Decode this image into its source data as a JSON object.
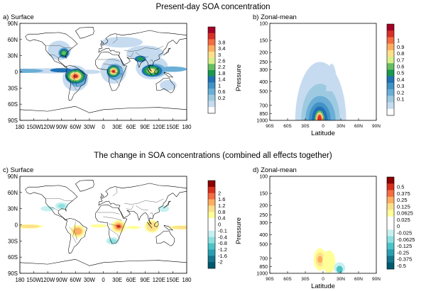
{
  "figure": {
    "title_top": "Present-day SOA concentration",
    "title_bottom": "The change in SOA concentrations (combined all effects together)"
  },
  "chart_data": [
    {
      "type": "heatmap",
      "panel": "a)",
      "title": "Surface",
      "map": "world",
      "x_ticks": [
        "180",
        "150W",
        "120W",
        "90W",
        "60W",
        "30W",
        "0",
        "30E",
        "60E",
        "90E",
        "120E",
        "150E",
        "180"
      ],
      "y_ticks": [
        "90N",
        "60N",
        "30N",
        "0",
        "30S",
        "60S",
        "90S"
      ],
      "xlim": [
        -180,
        180
      ],
      "ylim": [
        -90,
        90
      ],
      "colorbar_ticks": [
        "3.8",
        "3.4",
        "3",
        "2.6",
        "2.2",
        "1.8",
        "1.4",
        "1",
        "0.6",
        "0.2"
      ],
      "colorbar_colors": [
        "#a50026",
        "#d73027",
        "#f46d43",
        "#fdae61",
        "#fee08b",
        "#d9ef8b",
        "#66bd63",
        "#1a9850",
        "#2171b5",
        "#4292c6",
        "#6baed6",
        "#9ecae1",
        "#c6dbef",
        "#ffffff"
      ],
      "features": [
        {
          "lon": -60,
          "lat": -8,
          "rx": 22,
          "ry": 14,
          "level": 3.6
        },
        {
          "lon": 22,
          "lat": 1,
          "rx": 14,
          "ry": 11,
          "level": 3.4
        },
        {
          "lon": 105,
          "lat": 2,
          "rx": 22,
          "ry": 11,
          "level": 2.4
        },
        {
          "lon": -85,
          "lat": 35,
          "rx": 10,
          "ry": 8,
          "level": 1.6
        },
        {
          "lon": 80,
          "lat": 24,
          "rx": 12,
          "ry": 6,
          "level": 1.2
        },
        {
          "lon": -90,
          "lat": 3,
          "rx": 25,
          "ry": 4,
          "level": 0.8
        },
        {
          "lon": 140,
          "lat": 5,
          "rx": 30,
          "ry": 5,
          "level": 0.5
        }
      ]
    },
    {
      "type": "heatmap",
      "panel": "b)",
      "title": "Zonal-mean",
      "xlabel": "Latitude",
      "ylabel": "Pressure",
      "x_ticks": [
        "90S",
        "60S",
        "30S",
        "0",
        "30N",
        "60N",
        "90N"
      ],
      "y_ticks": [
        "100",
        "150",
        "200",
        "250",
        "300",
        "400",
        "500",
        "700",
        "850",
        "1000"
      ],
      "xlim": [
        -90,
        90
      ],
      "ylim": [
        1000,
        100
      ],
      "y_scale": "log",
      "colorbar_ticks": [
        "1",
        "0.9",
        "0.8",
        "0.7",
        "0.6",
        "0.5",
        "0.4",
        "0.3",
        "0.2",
        "0.1"
      ],
      "colorbar_colors": [
        "#a50026",
        "#d73027",
        "#f46d43",
        "#fdae61",
        "#fee08b",
        "#d9ef8b",
        "#66bd63",
        "#1a9850",
        "#2171b5",
        "#4292c6",
        "#6baed6",
        "#9ecae1",
        "#c6dbef",
        "#ffffff"
      ],
      "features": [
        {
          "lat": -5,
          "p": 850,
          "rlat": 10,
          "level": 1.0
        }
      ]
    },
    {
      "type": "heatmap",
      "panel": "c)",
      "title": "Surface",
      "map": "world",
      "x_ticks": [
        "180",
        "150W",
        "120W",
        "90W",
        "60W",
        "30W",
        "0",
        "30E",
        "60E",
        "90E",
        "120E",
        "150E",
        "180"
      ],
      "y_ticks": [
        "90N",
        "60N",
        "30N",
        "0",
        "30S",
        "60S",
        "90S"
      ],
      "xlim": [
        -180,
        180
      ],
      "ylim": [
        -90,
        90
      ],
      "colorbar_ticks": [
        "2",
        "1.6",
        "1.2",
        "0.8",
        "0.4",
        "0",
        "-0.1",
        "-0.4",
        "-0.8",
        "-1.2",
        "-1.6",
        "-2"
      ],
      "colorbar_colors": [
        "#8b0000",
        "#d7301f",
        "#f46d43",
        "#fdae61",
        "#fee08b",
        "#ffff99",
        "#ffffff",
        "#ffffff",
        "#c7f0f0",
        "#8ee0e0",
        "#4dc3c8",
        "#2a9fb0",
        "#14758c",
        "#005a6e"
      ],
      "features": [
        {
          "lon": 33,
          "lat": -3,
          "level": 1.6
        },
        {
          "lon": -55,
          "lat": -12,
          "level": 0.9
        },
        {
          "lon": 105,
          "lat": -3,
          "level": 0.6
        },
        {
          "lon": -160,
          "lat": -3,
          "level": 0.4
        },
        {
          "lon": 170,
          "lat": -5,
          "level": 0.4
        },
        {
          "lon": -90,
          "lat": 35,
          "level": -0.4
        },
        {
          "lon": 20,
          "lat": -30,
          "level": -0.4
        }
      ]
    },
    {
      "type": "heatmap",
      "panel": "d)",
      "title": "Zonal-mean",
      "xlabel": "Latitude",
      "ylabel": "Pressure",
      "x_ticks": [
        "90S",
        "60S",
        "30S",
        "0",
        "30N",
        "60N",
        "90N"
      ],
      "y_ticks": [
        "100",
        "150",
        "200",
        "250",
        "300",
        "400",
        "500",
        "700",
        "850",
        "1000"
      ],
      "xlim": [
        -90,
        90
      ],
      "ylim": [
        1000,
        100
      ],
      "y_scale": "log",
      "colorbar_ticks": [
        "0.5",
        "0.375",
        "0.25",
        "0.125",
        "0.0625",
        "0.025",
        "0",
        "-0.025",
        "-0.0625",
        "-0.125",
        "-0.25",
        "-0.375",
        "-0.5"
      ],
      "colorbar_colors": [
        "#8b0000",
        "#d7301f",
        "#f46d43",
        "#fdae61",
        "#fee08b",
        "#ffff99",
        "#ffffff",
        "#ffffff",
        "#c7f0f0",
        "#8ee0e0",
        "#4dc3c8",
        "#2a9fb0",
        "#14758c",
        "#005a6e"
      ],
      "features": [
        {
          "lat": -5,
          "p": 720,
          "level": 0.25
        },
        {
          "lat": 10,
          "p": 760,
          "level": 0.0625
        },
        {
          "lat": 28,
          "p": 880,
          "level": -0.25
        }
      ]
    }
  ]
}
